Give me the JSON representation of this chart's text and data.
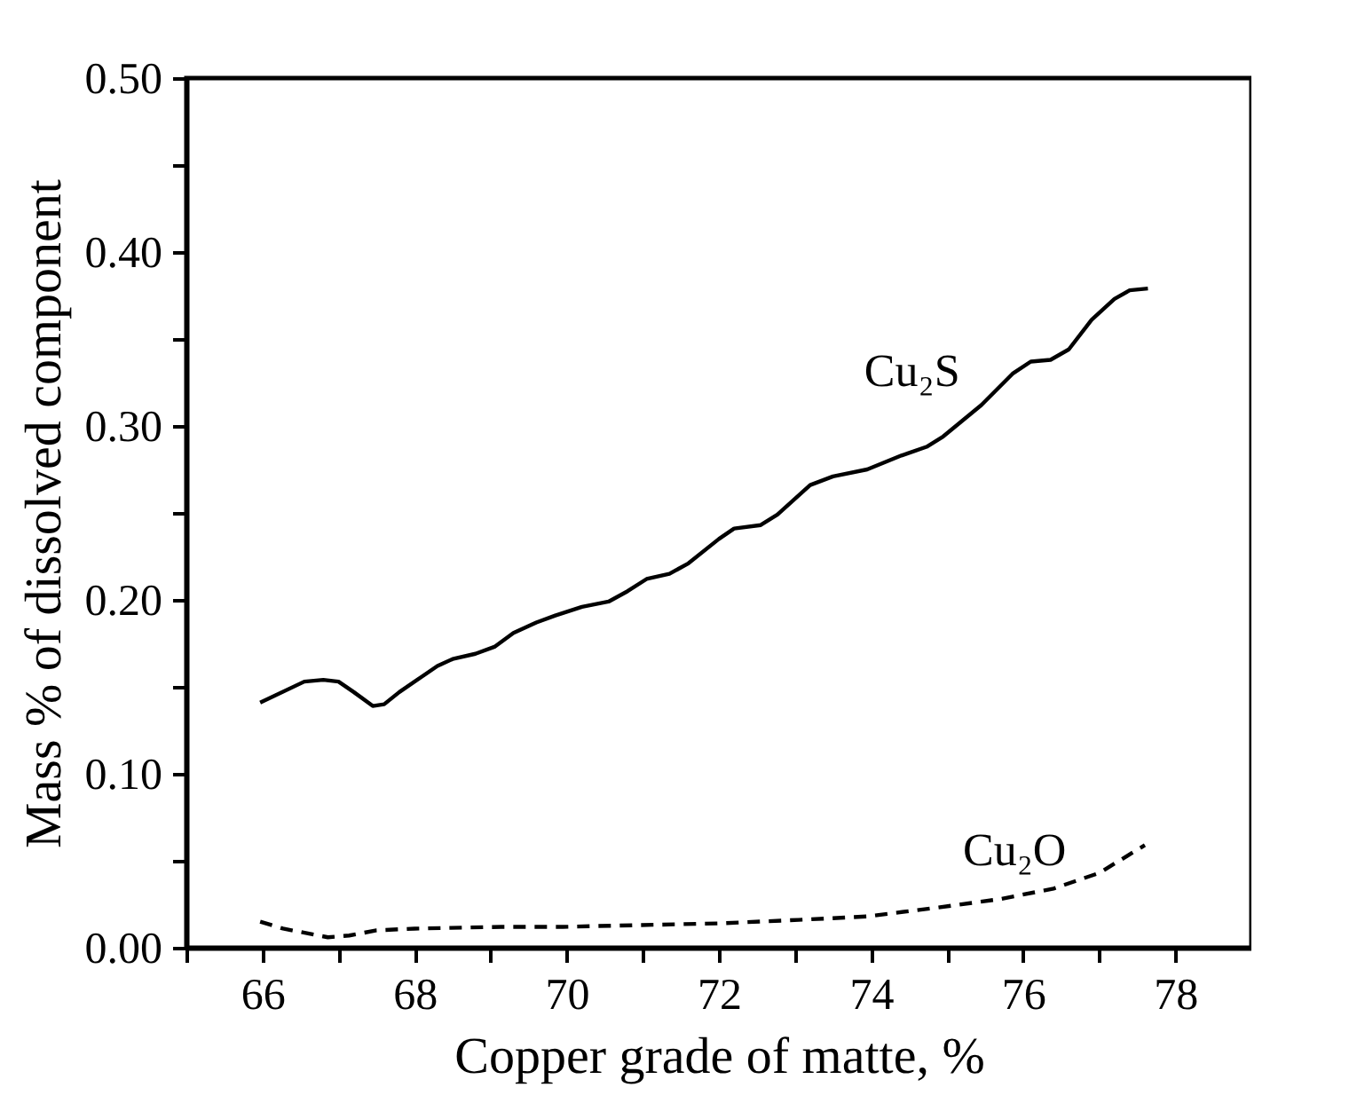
{
  "chart_data": {
    "type": "line",
    "xlabel": "Copper grade of matte, %",
    "ylabel": "Mass % of dissolved component",
    "xlim": [
      65,
      79
    ],
    "ylim": [
      0,
      0.5
    ],
    "xticks": [
      {
        "value": 65,
        "label": null
      },
      66,
      {
        "value": 67,
        "label": null
      },
      68,
      {
        "value": 69,
        "label": null
      },
      70,
      {
        "value": 71,
        "label": null
      },
      72,
      {
        "value": 73,
        "label": null
      },
      74,
      {
        "value": 75,
        "label": null
      },
      76,
      {
        "value": 77,
        "label": null
      },
      78
    ],
    "yticks": [
      {
        "value": 0,
        "label": "0.00"
      },
      {
        "value": 0.05,
        "label": null
      },
      {
        "value": 0.1,
        "label": "0.10"
      },
      {
        "value": 0.15,
        "label": null
      },
      {
        "value": 0.2,
        "label": "0.20"
      },
      {
        "value": 0.25,
        "label": null
      },
      {
        "value": 0.3,
        "label": "0.30"
      },
      {
        "value": 0.35,
        "label": null
      },
      {
        "value": 0.4,
        "label": "0.40"
      },
      {
        "value": 0.45,
        "label": null
      },
      {
        "value": 0.5,
        "label": "0.50"
      }
    ],
    "grid": false,
    "legend": false,
    "marker": "none",
    "series": [
      {
        "name": "Cu₂S",
        "color": "#000000",
        "line_style": "solid",
        "x": [
          65.97,
          66.55,
          66.8,
          67.0,
          67.2,
          67.45,
          67.6,
          67.8,
          68.1,
          68.3,
          68.5,
          68.8,
          69.05,
          69.3,
          69.6,
          69.85,
          70.2,
          70.55,
          70.8,
          71.05,
          71.35,
          71.6,
          72.0,
          72.2,
          72.55,
          72.77,
          73.2,
          73.5,
          73.95,
          74.4,
          74.73,
          74.95,
          75.45,
          75.86,
          76.1,
          76.36,
          76.6,
          76.9,
          77.2,
          77.4,
          77.64
        ],
        "values": [
          0.141,
          0.153,
          0.154,
          0.153,
          0.147,
          0.139,
          0.14,
          0.147,
          0.156,
          0.162,
          0.166,
          0.169,
          0.173,
          0.181,
          0.187,
          0.191,
          0.196,
          0.199,
          0.205,
          0.212,
          0.215,
          0.221,
          0.235,
          0.241,
          0.243,
          0.249,
          0.266,
          0.271,
          0.275,
          0.283,
          0.288,
          0.294,
          0.312,
          0.33,
          0.337,
          0.338,
          0.344,
          0.361,
          0.373,
          0.378,
          0.379
        ]
      },
      {
        "name": "Cu₂O",
        "color": "#000000",
        "line_style": "dashed",
        "x": [
          65.97,
          66.27,
          66.86,
          67.14,
          67.5,
          68.0,
          69.14,
          69.95,
          70.95,
          72.0,
          73.05,
          73.95,
          74.86,
          75.7,
          76.4,
          77.0,
          77.3,
          77.6
        ],
        "values": [
          0.015,
          0.011,
          0.006,
          0.007,
          0.01,
          0.011,
          0.012,
          0.012,
          0.013,
          0.014,
          0.016,
          0.018,
          0.023,
          0.028,
          0.034,
          0.043,
          0.051,
          0.059
        ]
      }
    ]
  }
}
